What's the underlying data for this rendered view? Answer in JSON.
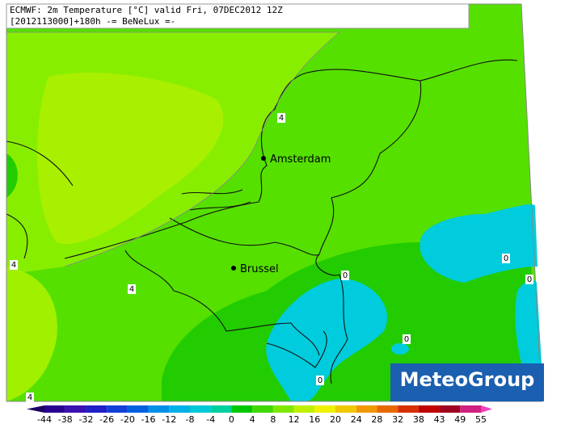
{
  "header": {
    "line1": "ECMWF: 2m Temperature [°C] valid Fri, 07DEC2012 12Z",
    "line2": "[2012113000]+180h -= BeNeLux =-"
  },
  "cities": [
    "Amsterdam",
    "Brussel"
  ],
  "contour_labels": [
    4,
    4,
    4,
    4,
    0,
    0,
    0,
    0,
    0
  ],
  "logo": "MeteoGroup",
  "legend": {
    "labels": [
      -44,
      -38,
      -32,
      -26,
      -20,
      -16,
      -12,
      -8,
      -4,
      0,
      4,
      8,
      12,
      16,
      20,
      24,
      28,
      32,
      38,
      43,
      49,
      55
    ],
    "colors": [
      "#1a0060",
      "#2a0090",
      "#3a10b0",
      "#2020c8",
      "#1040d8",
      "#0060e0",
      "#0090e8",
      "#00b0e8",
      "#00c8d8",
      "#00d0a0",
      "#00c800",
      "#40d800",
      "#80e800",
      "#c0f000",
      "#f0f000",
      "#f0c800",
      "#f09800",
      "#e86800",
      "#d83000",
      "#c00000",
      "#a00020",
      "#d02080",
      "#f040c0"
    ]
  }
}
